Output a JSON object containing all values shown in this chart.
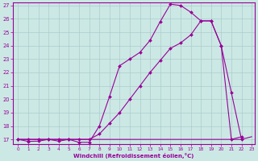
{
  "background_color": "#cce8e4",
  "line_color": "#990099",
  "grid_color": "#aacccc",
  "xlabel": "Windchill (Refroidissement éolien,°C)",
  "ylim_min": 16.65,
  "ylim_max": 27.2,
  "xlim_min": -0.5,
  "xlim_max": 23.3,
  "yticks": [
    17,
    18,
    19,
    20,
    21,
    22,
    23,
    24,
    25,
    26,
    27
  ],
  "xticks": [
    0,
    1,
    2,
    3,
    4,
    5,
    6,
    7,
    8,
    9,
    10,
    11,
    12,
    13,
    14,
    15,
    16,
    17,
    18,
    19,
    20,
    21,
    22,
    23
  ],
  "line1_x": [
    0,
    1,
    2,
    3,
    4,
    5,
    6,
    7,
    8,
    9,
    10,
    11,
    12,
    13,
    14,
    15,
    16,
    17,
    18,
    19,
    20,
    21,
    22
  ],
  "line1_y": [
    17.0,
    16.85,
    16.87,
    17.0,
    16.87,
    17.0,
    16.78,
    16.78,
    18.0,
    20.2,
    22.5,
    23.0,
    23.5,
    24.4,
    25.8,
    27.1,
    27.0,
    26.5,
    25.85,
    25.85,
    24.0,
    20.5,
    17.0
  ],
  "line2_x": [
    0,
    9,
    15,
    20,
    22,
    23
  ],
  "line2_y": [
    17.0,
    17.0,
    17.0,
    17.0,
    17.0,
    17.2
  ],
  "line3_x": [
    0,
    1,
    2,
    3,
    4,
    5,
    6,
    7,
    8,
    9,
    10,
    11,
    12,
    13,
    14,
    15,
    16,
    17,
    18,
    19,
    20,
    21,
    22
  ],
  "line3_y": [
    17.0,
    17.0,
    17.0,
    17.0,
    17.0,
    17.0,
    17.0,
    17.0,
    17.4,
    18.2,
    19.0,
    20.0,
    21.0,
    22.0,
    22.9,
    23.8,
    24.2,
    24.8,
    25.85,
    25.85,
    24.0,
    17.0,
    17.2
  ]
}
